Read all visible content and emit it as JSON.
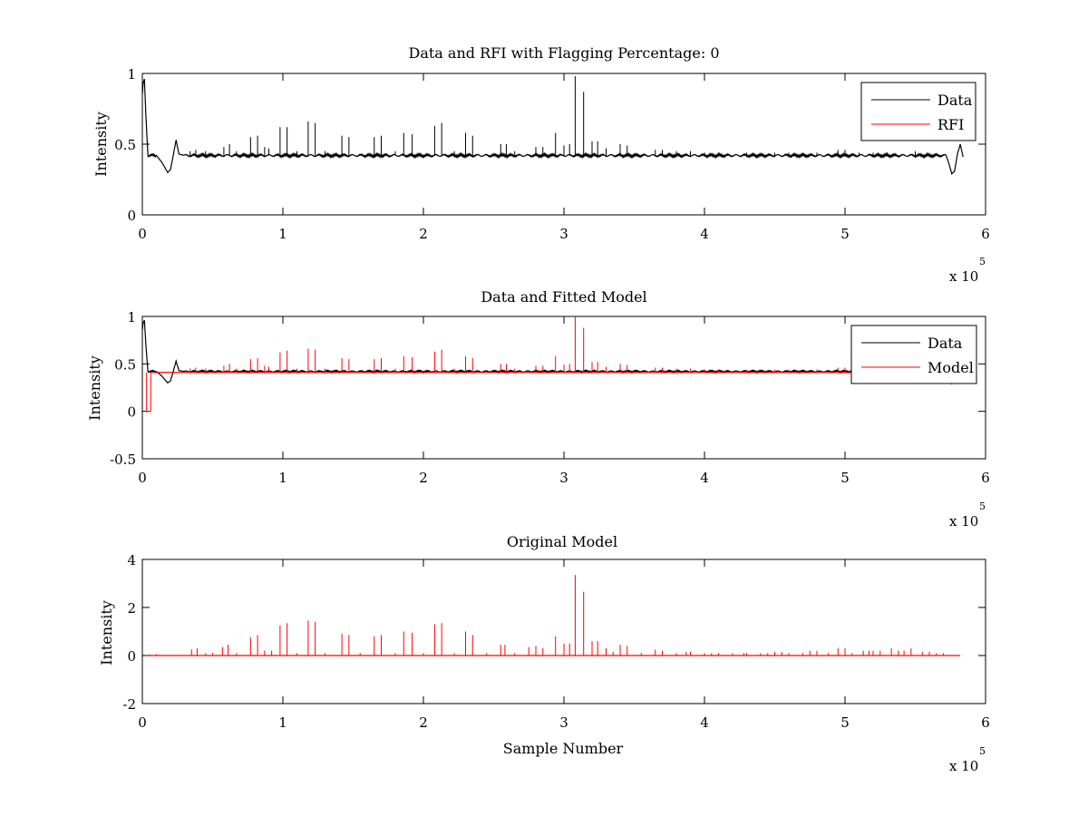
{
  "figure": {
    "background": "#ffffff"
  },
  "chart_data": [
    {
      "type": "line",
      "title": "Data and RFI with Flagging Percentage: 0",
      "xlabel": "",
      "ylabel": "Intensity",
      "xlim": [
        0,
        6
      ],
      "ylim": [
        0,
        1
      ],
      "xticks": [
        "0",
        "1",
        "2",
        "3",
        "4",
        "5",
        "6"
      ],
      "yticks": [
        "0",
        "0.5",
        "1"
      ],
      "ytick_values": [
        0,
        0.5,
        1
      ],
      "x_multiplier": "x 10",
      "x_multiplier_exp": "5",
      "grid": false,
      "legend": {
        "placement": "top-right",
        "entries": [
          {
            "label": "Data",
            "color": "#000000"
          },
          {
            "label": "RFI",
            "color": "#ff0000"
          }
        ]
      },
      "series": [
        {
          "name": "Data",
          "color": "#000000",
          "baseline": 0.42,
          "curve_points": [
            [
              0,
              0.85
            ],
            [
              0.005,
              0.93
            ],
            [
              0.015,
              0.96
            ],
            [
              0.025,
              0.7
            ],
            [
              0.04,
              0.42
            ],
            [
              0.1,
              0.42
            ],
            [
              0.14,
              0.37
            ],
            [
              0.18,
              0.3
            ],
            [
              0.2,
              0.32
            ],
            [
              0.22,
              0.42
            ],
            [
              0.24,
              0.53
            ],
            [
              0.26,
              0.43
            ],
            [
              0.3,
              0.42
            ],
            [
              5.72,
              0.42
            ],
            [
              5.74,
              0.36
            ],
            [
              5.76,
              0.29
            ],
            [
              5.78,
              0.31
            ],
            [
              5.8,
              0.43
            ],
            [
              5.82,
              0.5
            ],
            [
              5.84,
              0.41
            ]
          ],
          "spikes": [
            [
              0.34,
              0.45
            ],
            [
              0.38,
              0.46
            ],
            [
              0.45,
              0.45
            ],
            [
              0.58,
              0.48
            ],
            [
              0.62,
              0.5
            ],
            [
              0.67,
              0.45
            ],
            [
              0.77,
              0.55
            ],
            [
              0.82,
              0.56
            ],
            [
              0.87,
              0.48
            ],
            [
              0.9,
              0.47
            ],
            [
              0.98,
              0.62
            ],
            [
              1.03,
              0.62
            ],
            [
              1.1,
              0.45
            ],
            [
              1.18,
              0.66
            ],
            [
              1.23,
              0.65
            ],
            [
              1.3,
              0.45
            ],
            [
              1.42,
              0.56
            ],
            [
              1.47,
              0.55
            ],
            [
              1.65,
              0.55
            ],
            [
              1.7,
              0.56
            ],
            [
              1.8,
              0.45
            ],
            [
              1.86,
              0.58
            ],
            [
              1.92,
              0.57
            ],
            [
              2.08,
              0.63
            ],
            [
              2.13,
              0.65
            ],
            [
              2.22,
              0.45
            ],
            [
              2.3,
              0.58
            ],
            [
              2.35,
              0.56
            ],
            [
              2.55,
              0.5
            ],
            [
              2.59,
              0.5
            ],
            [
              2.65,
              0.45
            ],
            [
              2.8,
              0.48
            ],
            [
              2.85,
              0.48
            ],
            [
              2.94,
              0.58
            ],
            [
              3.0,
              0.49
            ],
            [
              3.04,
              0.5
            ],
            [
              3.08,
              0.98
            ],
            [
              3.14,
              0.87
            ],
            [
              3.2,
              0.52
            ],
            [
              3.24,
              0.52
            ],
            [
              3.3,
              0.47
            ],
            [
              3.4,
              0.5
            ],
            [
              3.45,
              0.49
            ],
            [
              3.65,
              0.46
            ],
            [
              3.7,
              0.46
            ],
            [
              3.8,
              0.45
            ],
            [
              3.9,
              0.45
            ],
            [
              4.0,
              0.44
            ],
            [
              4.1,
              0.44
            ],
            [
              4.3,
              0.44
            ],
            [
              4.5,
              0.44
            ],
            [
              4.6,
              0.44
            ],
            [
              4.8,
              0.44
            ],
            [
              4.95,
              0.46
            ],
            [
              5.0,
              0.46
            ],
            [
              5.1,
              0.44
            ],
            [
              5.2,
              0.44
            ],
            [
              5.3,
              0.44
            ],
            [
              5.5,
              0.45
            ]
          ]
        },
        {
          "name": "RFI",
          "color": "#ff0000",
          "points": []
        }
      ]
    },
    {
      "type": "line",
      "title": "Data and Fitted Model",
      "xlabel": "",
      "ylabel": "Intensity",
      "xlim": [
        0,
        6
      ],
      "ylim": [
        -0.5,
        1
      ],
      "xticks": [
        "0",
        "1",
        "2",
        "3",
        "4",
        "5",
        "6"
      ],
      "yticks": [
        "-0.5",
        "0",
        "0.5",
        "1"
      ],
      "ytick_values": [
        -0.5,
        0,
        0.5,
        1
      ],
      "x_multiplier": "x 10",
      "x_multiplier_exp": "5",
      "grid": false,
      "legend": {
        "placement": "top-right",
        "entries": [
          {
            "label": "Data",
            "color": "#000000"
          },
          {
            "label": "Model",
            "color": "#ff0000"
          }
        ]
      },
      "series": [
        {
          "name": "Data",
          "color": "#000000",
          "baseline": 0.42,
          "curve_points": [
            [
              0,
              0.85
            ],
            [
              0.005,
              0.93
            ],
            [
              0.015,
              0.96
            ],
            [
              0.025,
              0.7
            ],
            [
              0.04,
              0.42
            ],
            [
              0.1,
              0.42
            ],
            [
              0.14,
              0.37
            ],
            [
              0.18,
              0.3
            ],
            [
              0.2,
              0.32
            ],
            [
              0.22,
              0.42
            ],
            [
              0.24,
              0.53
            ],
            [
              0.26,
              0.43
            ],
            [
              0.3,
              0.42
            ],
            [
              5.72,
              0.42
            ],
            [
              5.74,
              0.36
            ],
            [
              5.76,
              0.29
            ],
            [
              5.78,
              0.31
            ],
            [
              5.8,
              0.43
            ],
            [
              5.82,
              0.5
            ],
            [
              5.84,
              0.41
            ]
          ],
          "spikes": []
        },
        {
          "name": "Model",
          "color": "#ff0000",
          "baseline": 0.41,
          "dip": [
            [
              0.03,
              0.41
            ],
            [
              0.03,
              0.0
            ],
            [
              0.06,
              0.0
            ],
            [
              0.06,
              0.41
            ]
          ],
          "spikes": [
            [
              0.34,
              0.45
            ],
            [
              0.38,
              0.46
            ],
            [
              0.45,
              0.45
            ],
            [
              0.58,
              0.48
            ],
            [
              0.62,
              0.5
            ],
            [
              0.67,
              0.45
            ],
            [
              0.77,
              0.55
            ],
            [
              0.82,
              0.56
            ],
            [
              0.87,
              0.48
            ],
            [
              0.9,
              0.47
            ],
            [
              0.98,
              0.62
            ],
            [
              1.03,
              0.64
            ],
            [
              1.1,
              0.45
            ],
            [
              1.18,
              0.66
            ],
            [
              1.23,
              0.65
            ],
            [
              1.3,
              0.45
            ],
            [
              1.42,
              0.56
            ],
            [
              1.47,
              0.55
            ],
            [
              1.65,
              0.55
            ],
            [
              1.7,
              0.56
            ],
            [
              1.8,
              0.45
            ],
            [
              1.86,
              0.58
            ],
            [
              1.92,
              0.57
            ],
            [
              2.08,
              0.63
            ],
            [
              2.13,
              0.65
            ],
            [
              2.22,
              0.45
            ],
            [
              2.3,
              0.58
            ],
            [
              2.35,
              0.56
            ],
            [
              2.55,
              0.5
            ],
            [
              2.59,
              0.5
            ],
            [
              2.65,
              0.45
            ],
            [
              2.8,
              0.48
            ],
            [
              2.85,
              0.48
            ],
            [
              2.94,
              0.58
            ],
            [
              3.0,
              0.49
            ],
            [
              3.04,
              0.5
            ],
            [
              3.08,
              1.0
            ],
            [
              3.14,
              0.88
            ],
            [
              3.2,
              0.52
            ],
            [
              3.24,
              0.52
            ],
            [
              3.3,
              0.47
            ],
            [
              3.4,
              0.5
            ],
            [
              3.45,
              0.49
            ],
            [
              3.65,
              0.46
            ],
            [
              3.7,
              0.46
            ],
            [
              3.8,
              0.45
            ],
            [
              3.9,
              0.45
            ],
            [
              4.0,
              0.44
            ],
            [
              4.1,
              0.44
            ],
            [
              4.3,
              0.44
            ],
            [
              4.5,
              0.44
            ],
            [
              4.6,
              0.44
            ],
            [
              4.8,
              0.44
            ],
            [
              4.95,
              0.46
            ],
            [
              5.0,
              0.46
            ],
            [
              5.1,
              0.44
            ],
            [
              5.2,
              0.44
            ],
            [
              5.3,
              0.44
            ],
            [
              5.5,
              0.45
            ]
          ]
        }
      ]
    },
    {
      "type": "line",
      "title": "Original Model",
      "xlabel": "Sample Number",
      "ylabel": "Intensity",
      "xlim": [
        0,
        6
      ],
      "ylim": [
        -2,
        4
      ],
      "xticks": [
        "0",
        "1",
        "2",
        "3",
        "4",
        "5",
        "6"
      ],
      "yticks": [
        "-2",
        "0",
        "2",
        "4"
      ],
      "ytick_values": [
        -2,
        0,
        2,
        4
      ],
      "x_multiplier": "x 10",
      "x_multiplier_exp": "5",
      "grid": false,
      "series": [
        {
          "name": "Original Model",
          "color": "#ff0000",
          "baseline": 0,
          "x_end": 5.82,
          "spikes": [
            [
              0.05,
              0.05
            ],
            [
              0.1,
              0.05
            ],
            [
              0.35,
              0.25
            ],
            [
              0.39,
              0.3
            ],
            [
              0.45,
              0.1
            ],
            [
              0.5,
              0.1
            ],
            [
              0.57,
              0.35
            ],
            [
              0.61,
              0.45
            ],
            [
              0.67,
              0.1
            ],
            [
              0.77,
              0.75
            ],
            [
              0.82,
              0.85
            ],
            [
              0.87,
              0.2
            ],
            [
              0.92,
              0.2
            ],
            [
              0.98,
              1.25
            ],
            [
              1.03,
              1.35
            ],
            [
              1.1,
              0.1
            ],
            [
              1.18,
              1.45
            ],
            [
              1.23,
              1.4
            ],
            [
              1.3,
              0.1
            ],
            [
              1.42,
              0.9
            ],
            [
              1.47,
              0.85
            ],
            [
              1.55,
              0.1
            ],
            [
              1.65,
              0.8
            ],
            [
              1.7,
              0.85
            ],
            [
              1.8,
              0.1
            ],
            [
              1.86,
              1.0
            ],
            [
              1.92,
              0.95
            ],
            [
              2.0,
              0.1
            ],
            [
              2.08,
              1.3
            ],
            [
              2.13,
              1.35
            ],
            [
              2.22,
              0.1
            ],
            [
              2.3,
              1.0
            ],
            [
              2.35,
              0.85
            ],
            [
              2.45,
              0.1
            ],
            [
              2.55,
              0.45
            ],
            [
              2.58,
              0.45
            ],
            [
              2.65,
              0.1
            ],
            [
              2.75,
              0.35
            ],
            [
              2.8,
              0.4
            ],
            [
              2.85,
              0.3
            ],
            [
              2.94,
              0.8
            ],
            [
              3.0,
              0.5
            ],
            [
              3.04,
              0.5
            ],
            [
              3.08,
              3.35
            ],
            [
              3.14,
              2.65
            ],
            [
              3.2,
              0.6
            ],
            [
              3.24,
              0.6
            ],
            [
              3.3,
              0.3
            ],
            [
              3.35,
              0.15
            ],
            [
              3.4,
              0.45
            ],
            [
              3.45,
              0.4
            ],
            [
              3.55,
              0.1
            ],
            [
              3.65,
              0.25
            ],
            [
              3.7,
              0.2
            ],
            [
              3.8,
              0.1
            ],
            [
              3.87,
              0.15
            ],
            [
              3.9,
              0.15
            ],
            [
              4.0,
              0.1
            ],
            [
              4.05,
              0.1
            ],
            [
              4.1,
              0.1
            ],
            [
              4.2,
              0.1
            ],
            [
              4.28,
              0.1
            ],
            [
              4.3,
              0.1
            ],
            [
              4.4,
              0.1
            ],
            [
              4.45,
              0.1
            ],
            [
              4.5,
              0.15
            ],
            [
              4.55,
              0.15
            ],
            [
              4.6,
              0.1
            ],
            [
              4.7,
              0.1
            ],
            [
              4.75,
              0.2
            ],
            [
              4.8,
              0.2
            ],
            [
              4.88,
              0.1
            ],
            [
              4.95,
              0.3
            ],
            [
              5.0,
              0.3
            ],
            [
              5.05,
              0.1
            ],
            [
              5.13,
              0.2
            ],
            [
              5.17,
              0.2
            ],
            [
              5.2,
              0.2
            ],
            [
              5.25,
              0.2
            ],
            [
              5.33,
              0.3
            ],
            [
              5.38,
              0.2
            ],
            [
              5.42,
              0.2
            ],
            [
              5.47,
              0.3
            ],
            [
              5.55,
              0.15
            ],
            [
              5.6,
              0.15
            ],
            [
              5.65,
              0.1
            ],
            [
              5.7,
              0.1
            ]
          ]
        }
      ]
    }
  ]
}
